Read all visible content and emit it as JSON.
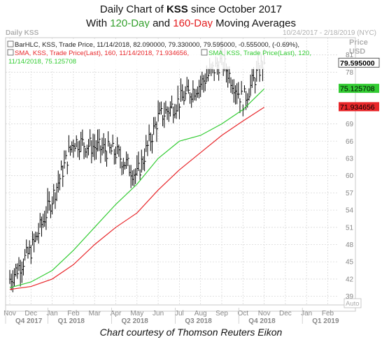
{
  "title": {
    "line1_prefix": "Daily Chart of ",
    "line1_ticker": "KSS",
    "line1_suffix": " since October 2017",
    "line2_prefix": "With ",
    "line2_ma1": "120-Day",
    "line2_mid": " and ",
    "line2_ma2": "160-Day",
    "line2_suffix": " Moving Averages"
  },
  "panel": {
    "label": "Daily KSS",
    "date_range": "10/24/2017 - 2/18/2019 (NYC)",
    "price_label": "Price",
    "currency_label": "USD",
    "auto_label": "Auto"
  },
  "legend": {
    "bar": "BarHLC, KSS, Trade Price, 11/14/2018, 82.090000, 79.330000, 79.595000, -0.555000, (-0.69%),",
    "sma160": "SMA, KSS, Trade Price(Last), 160, 11/14/2018, 71.934656,",
    "sma120_a": "SMA, KSS, Trade Price(Last), 120,",
    "sma120_b": "11/14/2018, 75.125708"
  },
  "last_values": {
    "price": "79.595000",
    "sma120": "75.125708",
    "sma160": "71.934656"
  },
  "caption": "Chart courtesy of Thomson Reuters Eikon",
  "colors": {
    "bars": "#000000",
    "sma120": "#33cc33",
    "sma160": "#e8262a",
    "grid": "#d9d9d9",
    "price_box": "#ffffff",
    "sma120_box": "#33cc33",
    "sma160_box": "#e8262a"
  },
  "chart_data": {
    "type": "line",
    "x_months": [
      "Nov",
      "Dec",
      "Jan",
      "Feb",
      "Mar",
      "Apr",
      "May",
      "Jun",
      "Jul",
      "Aug",
      "Sep",
      "Oct",
      "Nov",
      "Dec",
      "Jan",
      "Feb"
    ],
    "quarters": [
      "Q4 2017",
      "Q1 2018",
      "Q2 2018",
      "Q3 2018",
      "Q4 2018",
      "Q1 2019"
    ],
    "y_ticks": [
      39,
      42,
      45,
      48,
      51,
      54,
      57,
      60,
      63,
      66,
      69,
      72,
      75,
      78,
      81
    ],
    "ylim": [
      37.5,
      84
    ],
    "price_monthly": {
      "months": [
        "Nov",
        "Dec",
        "Jan",
        "Feb",
        "Mar",
        "Apr",
        "May",
        "Jun",
        "Jul",
        "Aug",
        "Sep",
        "Oct",
        "Nov"
      ],
      "close": [
        42,
        47,
        56,
        66,
        65,
        64,
        60,
        70,
        73,
        76,
        80,
        73,
        80
      ]
    },
    "series": [
      {
        "name": "BarHLC, KSS, Trade Price",
        "type": "ohlc",
        "last": {
          "date": "11/14/2018",
          "high": 82.09,
          "low": 79.33,
          "close": 79.595,
          "change": -0.555,
          "change_pct": -0.69
        }
      },
      {
        "name": "SMA, KSS, Trade Price(Last), 120",
        "last": 75.125708,
        "x": [
          "Nov",
          "Dec",
          "Jan",
          "Feb",
          "Mar",
          "Apr",
          "May",
          "Jun",
          "Jul",
          "Aug",
          "Sep",
          "Oct",
          "Nov"
        ],
        "values": [
          40.5,
          41.5,
          43.5,
          47,
          51,
          55,
          58.5,
          63,
          66,
          67,
          69,
          71.5,
          75.1
        ]
      },
      {
        "name": "SMA, KSS, Trade Price(Last), 160",
        "last": 71.934656,
        "x": [
          "Nov",
          "Dec",
          "Jan",
          "Feb",
          "Mar",
          "Apr",
          "May",
          "Jun",
          "Jul",
          "Aug",
          "Sep",
          "Oct",
          "Nov"
        ],
        "values": [
          40.2,
          40.7,
          42,
          44.5,
          48,
          51,
          53.5,
          57.5,
          61,
          64,
          67,
          69.5,
          71.9
        ]
      }
    ]
  }
}
